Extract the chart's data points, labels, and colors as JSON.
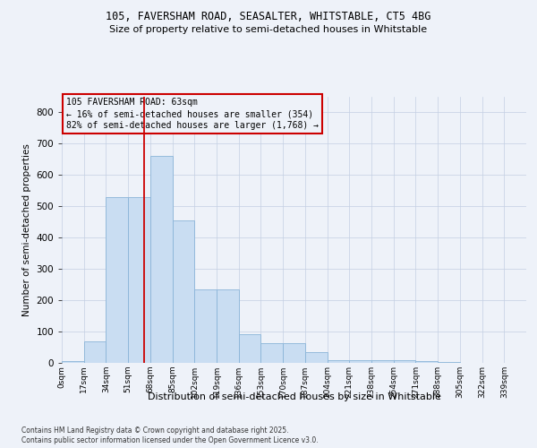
{
  "title_line1": "105, FAVERSHAM ROAD, SEASALTER, WHITSTABLE, CT5 4BG",
  "title_line2": "Size of property relative to semi-detached houses in Whitstable",
  "xlabel": "Distribution of semi-detached houses by size in Whitstable",
  "ylabel": "Number of semi-detached properties",
  "bar_color": "#c9ddf2",
  "bar_edge_color": "#8ab4d8",
  "bin_labels": [
    "0sqm",
    "17sqm",
    "34sqm",
    "51sqm",
    "68sqm",
    "85sqm",
    "102sqm",
    "119sqm",
    "136sqm",
    "153sqm",
    "170sqm",
    "187sqm",
    "204sqm",
    "221sqm",
    "238sqm",
    "254sqm",
    "271sqm",
    "288sqm",
    "305sqm",
    "322sqm",
    "339sqm"
  ],
  "bar_heights": [
    5,
    70,
    530,
    530,
    660,
    455,
    235,
    235,
    92,
    63,
    63,
    35,
    10,
    10,
    10,
    10,
    5,
    3,
    1,
    0,
    0
  ],
  "ylim": [
    0,
    850
  ],
  "yticks": [
    0,
    100,
    200,
    300,
    400,
    500,
    600,
    700,
    800
  ],
  "property_sqm": 63,
  "bin_width": 17,
  "annotation_title": "105 FAVERSHAM ROAD: 63sqm",
  "annotation_line1": "← 16% of semi-detached houses are smaller (354)",
  "annotation_line2": "82% of semi-detached houses are larger (1,768) →",
  "annotation_color": "#cc0000",
  "footnote_line1": "Contains HM Land Registry data © Crown copyright and database right 2025.",
  "footnote_line2": "Contains public sector information licensed under the Open Government Licence v3.0.",
  "background_color": "#eef2f9",
  "grid_color": "#c4cfe3"
}
